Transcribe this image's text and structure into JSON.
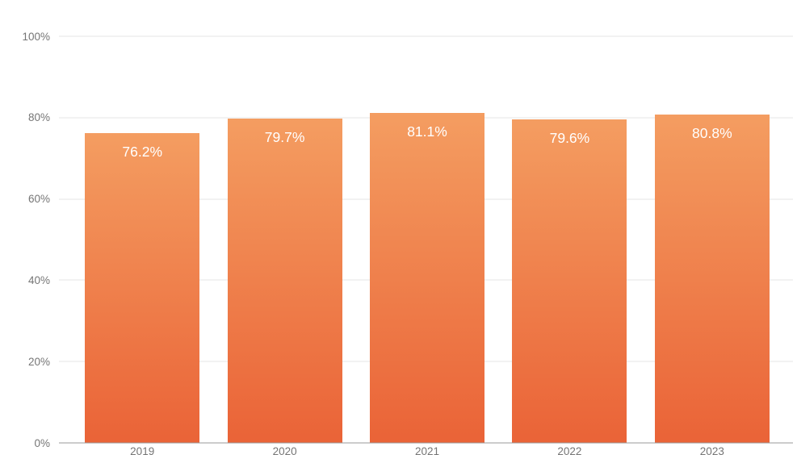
{
  "chart_data": {
    "type": "bar",
    "title": "",
    "xlabel": "",
    "ylabel": "",
    "categories": [
      "2019",
      "2020",
      "2021",
      "2022",
      "2023"
    ],
    "values": [
      76.2,
      79.7,
      81.1,
      79.6,
      80.8
    ],
    "value_labels": [
      "76.2%",
      "79.7%",
      "81.1%",
      "79.6%",
      "80.8%"
    ],
    "ylim": [
      0,
      100
    ],
    "yticks": [
      0,
      20,
      40,
      60,
      80,
      100
    ],
    "ytick_labels": [
      "0%",
      "20%",
      "40%",
      "60%",
      "80%",
      "100%"
    ],
    "grid": true,
    "legend": false,
    "colors": {
      "bar_gradient_top": "#f49d61",
      "bar_gradient_bottom": "#ea6337",
      "bar_value_label": "#ffffff",
      "gridline": "#e4e4e4",
      "axis_line": "#999999",
      "tick_label": "#757575",
      "background": "#ffffff"
    }
  }
}
